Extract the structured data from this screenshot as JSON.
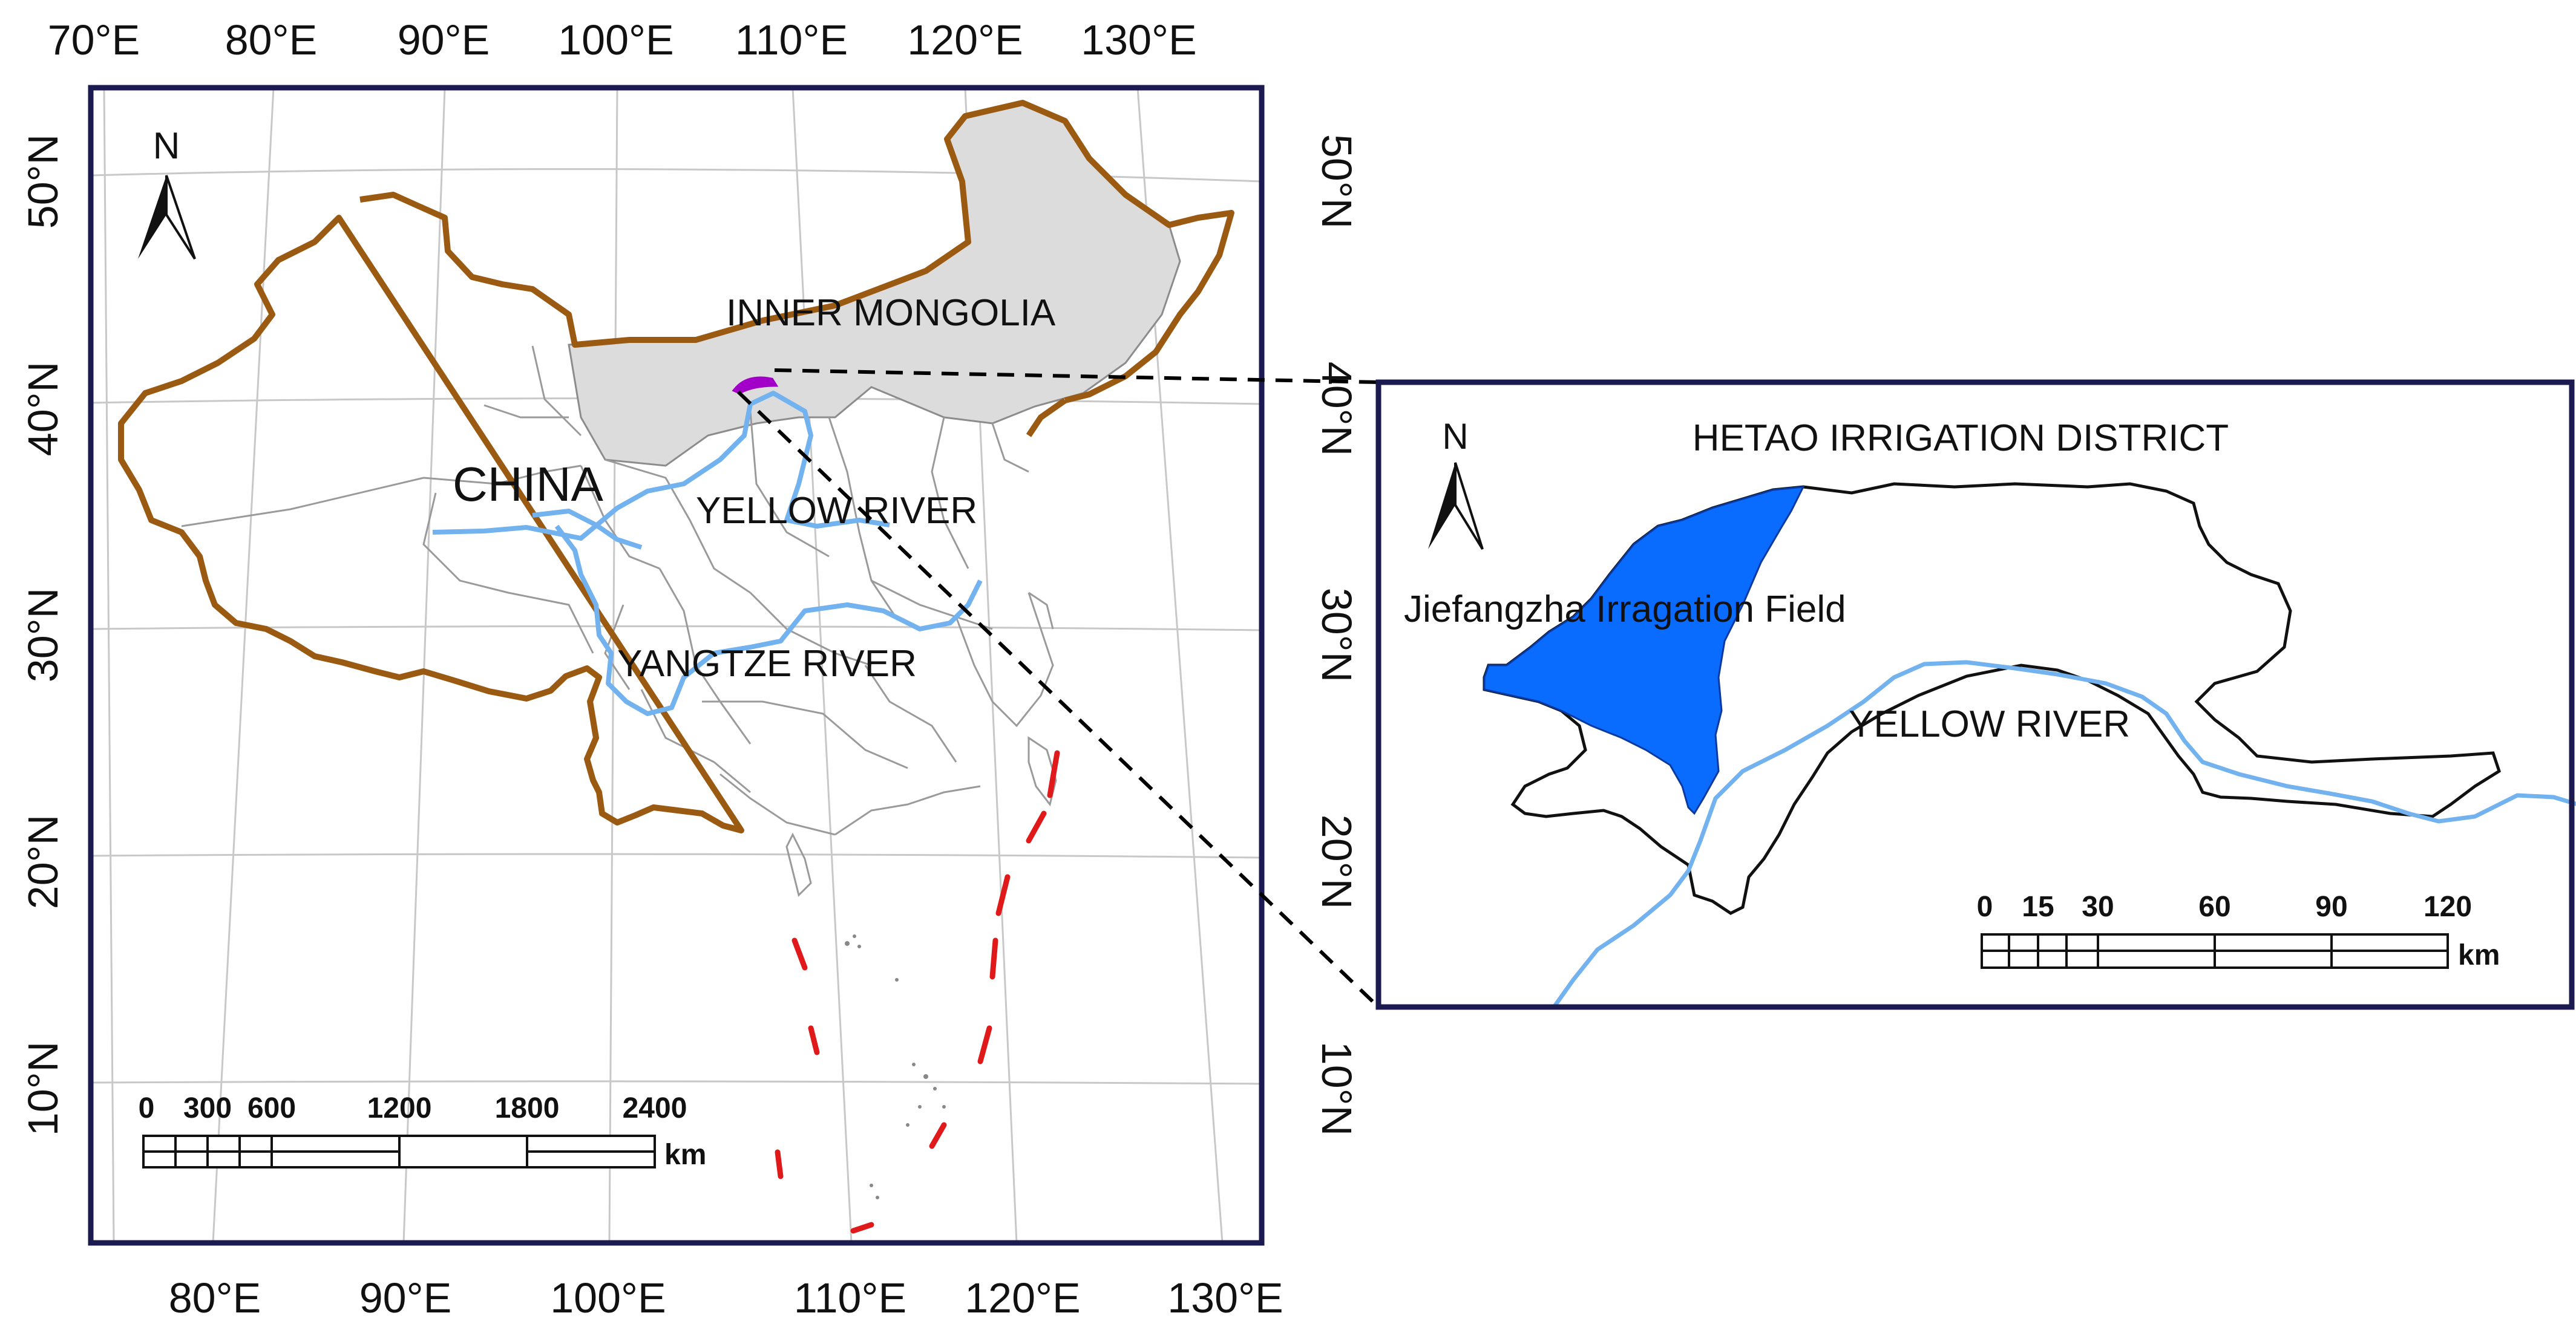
{
  "main_map": {
    "top_lon_labels": [
      "70°E",
      "80°E",
      "90°E",
      "100°E",
      "110°E",
      "120°E",
      "130°E"
    ],
    "bottom_lon_labels": [
      "80°E",
      "90°E",
      "100°E",
      "110°E",
      "120°E",
      "130°E"
    ],
    "left_lat_labels": [
      "50°N",
      "40°N",
      "30°N",
      "20°N",
      "10°N"
    ],
    "right_lat_labels": [
      "50°N",
      "40°N",
      "30°N",
      "20°N",
      "10°N"
    ],
    "north_label": "N",
    "country_label": "CHINA",
    "region_label": "INNER MONGOLIA",
    "river_labels": {
      "yellow": "YELLOW RIVER",
      "yangtze": "YANGTZE RIVER"
    },
    "scale_bar": {
      "ticks": [
        "0",
        "300",
        "600",
        "1200",
        "1800",
        "2400"
      ],
      "unit": "km"
    }
  },
  "inset_map": {
    "title": "HETAO IRRIGATION DISTRICT",
    "north_label": "N",
    "field_label": "Jiefangzha Irragation Field",
    "river_label": "YELLOW RIVER",
    "scale_bar": {
      "ticks": [
        "0",
        "15",
        "30",
        "60",
        "90",
        "120"
      ],
      "unit": "km"
    }
  },
  "colors": {
    "frame": "#1b1b4f",
    "national_border": "#9a5a12",
    "inner_mongolia_fill": "#dcdcdc",
    "province_lines": "#9a9a9a",
    "river": "#72b2ee",
    "nine_dash_line": "#e01a1a",
    "study_area_marker": "#a200c8",
    "jiefangzha_fill": "#0a6bff",
    "leader_line": "#000000"
  }
}
